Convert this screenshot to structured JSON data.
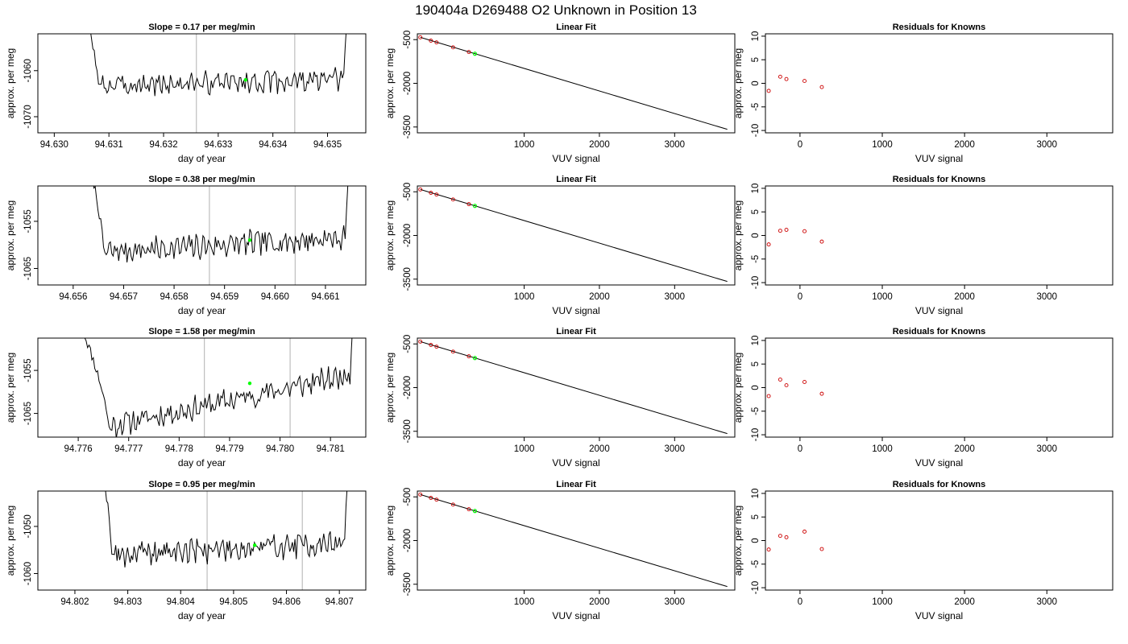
{
  "title": "190404a     D269488   O2 Unknown in Position  13",
  "colors": {
    "trace": "#000000",
    "marker": "#00ff00",
    "known": "#cc0000",
    "vline": "#bebebe"
  },
  "chart_data": [
    {
      "type": "line",
      "row": 0,
      "panel": "timeseries",
      "title": "Slope =  0.17  per meg/min",
      "xlabel": "day of year",
      "ylabel": "approx. per meg",
      "xlim": [
        94.6297,
        94.6357
      ],
      "ylim": [
        -1073.5,
        -1052
      ],
      "xticks": [
        "94.630",
        "94.631",
        "94.632",
        "94.633",
        "94.634",
        "94.635"
      ],
      "xtick_values": [
        94.63,
        94.631,
        94.632,
        94.633,
        94.634,
        94.635
      ],
      "yticks": [
        "-1070",
        "-1060"
      ],
      "ytick_values": [
        -1070,
        -1060
      ],
      "vlines": [
        94.6326,
        94.6344
      ],
      "trace": {
        "x0": 94.6305,
        "x1": 94.6354,
        "rise_x": 94.6308,
        "end_x": 94.6353,
        "level": -1063.2,
        "drift": 1.2,
        "amp": 2.0,
        "spike": 20,
        "seed": 3
      },
      "marker": {
        "x": 94.6335,
        "y": -1062
      }
    },
    {
      "type": "scatter",
      "row": 0,
      "panel": "fit",
      "title": "Linear Fit",
      "xlabel": "VUV signal",
      "ylabel": "approx. per meg",
      "xlim": [
        -420,
        3800
      ],
      "ylim": [
        -3700,
        -300
      ],
      "xticks": [
        "1000",
        "2000",
        "3000"
      ],
      "xtick_values": [
        1000,
        2000,
        3000
      ],
      "yticks": [
        "-500",
        "-2000",
        "-3500"
      ],
      "ytick_values": [
        -500,
        -2000,
        -3500
      ],
      "fit_line": {
        "x": [
          -380,
          3700
        ],
        "y": [
          -420,
          -3580
        ]
      },
      "knowns": {
        "x": [
          -380,
          -240,
          -165,
          55,
          265
        ],
        "y": [
          -420,
          -535,
          -595,
          -765,
          -925
        ]
      },
      "unknown": {
        "x": 345,
        "y": -985
      }
    },
    {
      "type": "scatter",
      "row": 0,
      "panel": "residuals",
      "title": "Residuals for Knowns",
      "xlabel": "VUV signal",
      "ylabel": "approx. per meg",
      "xlim": [
        -420,
        3800
      ],
      "ylim": [
        -10.5,
        10.5
      ],
      "xticks": [
        "0",
        "1000",
        "2000",
        "3000"
      ],
      "xtick_values": [
        0,
        1000,
        2000,
        3000
      ],
      "yticks": [
        "-10",
        "-5",
        "0",
        "5",
        "10"
      ],
      "ytick_values": [
        -10,
        -5,
        0,
        5,
        10
      ],
      "residuals": {
        "x": [
          -380,
          -240,
          -165,
          55,
          265
        ],
        "y": [
          -1.6,
          1.4,
          0.9,
          0.5,
          -0.8
        ]
      }
    },
    {
      "type": "line",
      "row": 1,
      "panel": "timeseries",
      "title": "Slope =  0.38  per meg/min",
      "xlabel": "day of year",
      "ylabel": "approx. per meg",
      "xlim": [
        94.6553,
        94.6618
      ],
      "ylim": [
        -1068.5,
        -1047.5
      ],
      "xticks": [
        "94.656",
        "94.657",
        "94.658",
        "94.659",
        "94.660",
        "94.661"
      ],
      "xtick_values": [
        94.656,
        94.657,
        94.658,
        94.659,
        94.66,
        94.661
      ],
      "yticks": [
        "-1065",
        "-1055"
      ],
      "ytick_values": [
        -1065,
        -1055
      ],
      "vlines": [
        94.6587,
        94.6604
      ],
      "trace": {
        "x0": 94.6563,
        "x1": 94.6615,
        "rise_x": 94.6566,
        "end_x": 94.6614,
        "level": -1061.5,
        "drift": 3.0,
        "amp": 2.2,
        "spike": 20,
        "seed": 7
      },
      "marker": {
        "x": 94.6595,
        "y": -1059
      }
    },
    {
      "type": "scatter",
      "row": 1,
      "panel": "fit",
      "title": "Linear Fit",
      "xlabel": "VUV signal",
      "ylabel": "approx. per meg",
      "xlim": [
        -420,
        3800
      ],
      "ylim": [
        -3700,
        -300
      ],
      "xticks": [
        "1000",
        "2000",
        "3000"
      ],
      "xtick_values": [
        1000,
        2000,
        3000
      ],
      "yticks": [
        "-500",
        "-2000",
        "-3500"
      ],
      "ytick_values": [
        -500,
        -2000,
        -3500
      ],
      "fit_line": {
        "x": [
          -380,
          3700
        ],
        "y": [
          -420,
          -3580
        ]
      },
      "knowns": {
        "x": [
          -380,
          -240,
          -165,
          55,
          265
        ],
        "y": [
          -420,
          -535,
          -595,
          -765,
          -925
        ]
      },
      "unknown": {
        "x": 345,
        "y": -985
      }
    },
    {
      "type": "scatter",
      "row": 1,
      "panel": "residuals",
      "title": "Residuals for Knowns",
      "xlabel": "VUV signal",
      "ylabel": "approx. per meg",
      "xlim": [
        -420,
        3800
      ],
      "ylim": [
        -10.5,
        10.5
      ],
      "xticks": [
        "0",
        "1000",
        "2000",
        "3000"
      ],
      "xtick_values": [
        0,
        1000,
        2000,
        3000
      ],
      "yticks": [
        "-10",
        "-5",
        "0",
        "5",
        "10"
      ],
      "ytick_values": [
        -10,
        -5,
        0,
        5,
        10
      ],
      "residuals": {
        "x": [
          -380,
          -240,
          -165,
          55,
          265
        ],
        "y": [
          -1.9,
          1.0,
          1.2,
          0.9,
          -1.3
        ]
      }
    },
    {
      "type": "line",
      "row": 2,
      "panel": "timeseries",
      "title": "Slope =  1.58  per meg/min",
      "xlabel": "day of year",
      "ylabel": "approx. per meg",
      "xlim": [
        94.7752,
        94.7817
      ],
      "ylim": [
        -1070.5,
        -1047.5
      ],
      "xticks": [
        "94.776",
        "94.777",
        "94.778",
        "94.779",
        "94.780",
        "94.781"
      ],
      "xtick_values": [
        94.776,
        94.777,
        94.778,
        94.779,
        94.78,
        94.781
      ],
      "yticks": [
        "-1065",
        "-1055"
      ],
      "ytick_values": [
        -1065,
        -1055
      ],
      "vlines": [
        94.7785,
        94.7802
      ],
      "trace": {
        "x0": 94.7761,
        "x1": 94.7815,
        "rise_x": 94.7766,
        "end_x": 94.7814,
        "level": -1068,
        "drift": 12,
        "amp": 2.4,
        "spike": 22,
        "seed": 11
      },
      "marker": {
        "x": 94.7794,
        "y": -1058
      }
    },
    {
      "type": "scatter",
      "row": 2,
      "panel": "fit",
      "title": "Linear Fit",
      "xlabel": "VUV signal",
      "ylabel": "approx. per meg",
      "xlim": [
        -420,
        3800
      ],
      "ylim": [
        -3700,
        -300
      ],
      "xticks": [
        "1000",
        "2000",
        "3000"
      ],
      "xtick_values": [
        1000,
        2000,
        3000
      ],
      "yticks": [
        "-500",
        "-2000",
        "-3500"
      ],
      "ytick_values": [
        -500,
        -2000,
        -3500
      ],
      "fit_line": {
        "x": [
          -380,
          3700
        ],
        "y": [
          -420,
          -3580
        ]
      },
      "knowns": {
        "x": [
          -380,
          -240,
          -165,
          55,
          265
        ],
        "y": [
          -420,
          -535,
          -595,
          -765,
          -925
        ]
      },
      "unknown": {
        "x": 345,
        "y": -985
      }
    },
    {
      "type": "scatter",
      "row": 2,
      "panel": "residuals",
      "title": "Residuals for Knowns",
      "xlabel": "VUV signal",
      "ylabel": "approx. per meg",
      "xlim": [
        -420,
        3800
      ],
      "ylim": [
        -10.5,
        10.5
      ],
      "xticks": [
        "0",
        "1000",
        "2000",
        "3000"
      ],
      "xtick_values": [
        0,
        1000,
        2000,
        3000
      ],
      "yticks": [
        "-10",
        "-5",
        "0",
        "5",
        "10"
      ],
      "ytick_values": [
        -10,
        -5,
        0,
        5,
        10
      ],
      "residuals": {
        "x": [
          -380,
          -240,
          -165,
          55,
          265
        ],
        "y": [
          -1.8,
          1.7,
          0.5,
          1.2,
          -1.3
        ]
      }
    },
    {
      "type": "line",
      "row": 3,
      "panel": "timeseries",
      "title": "Slope =  0.95  per meg/min",
      "xlabel": "day of year",
      "ylabel": "approx. per meg",
      "xlim": [
        94.8013,
        94.8075
      ],
      "ylim": [
        -1063.5,
        -1042.5
      ],
      "xticks": [
        "94.802",
        "94.803",
        "94.804",
        "94.805",
        "94.806",
        "94.807"
      ],
      "xtick_values": [
        94.802,
        94.803,
        94.804,
        94.805,
        94.806,
        94.807
      ],
      "yticks": [
        "-1060",
        "-1050"
      ],
      "ytick_values": [
        -1060,
        -1050
      ],
      "vlines": [
        94.8045,
        94.8063
      ],
      "trace": {
        "x0": 94.8025,
        "x1": 94.8072,
        "rise_x": 94.8027,
        "end_x": 94.8071,
        "level": -1056,
        "drift": 2.5,
        "amp": 2.2,
        "spike": 20,
        "seed": 19
      },
      "marker": {
        "x": 94.8054,
        "y": -1054
      }
    },
    {
      "type": "scatter",
      "row": 3,
      "panel": "fit",
      "title": "Linear Fit",
      "xlabel": "VUV signal",
      "ylabel": "approx. per meg",
      "xlim": [
        -420,
        3800
      ],
      "ylim": [
        -3700,
        -300
      ],
      "xticks": [
        "1000",
        "2000",
        "3000"
      ],
      "xtick_values": [
        1000,
        2000,
        3000
      ],
      "yticks": [
        "-500",
        "-2000",
        "-3500"
      ],
      "ytick_values": [
        -500,
        -2000,
        -3500
      ],
      "fit_line": {
        "x": [
          -380,
          3700
        ],
        "y": [
          -420,
          -3580
        ]
      },
      "knowns": {
        "x": [
          -380,
          -240,
          -165,
          55,
          265
        ],
        "y": [
          -420,
          -535,
          -595,
          -765,
          -925
        ]
      },
      "unknown": {
        "x": 345,
        "y": -985
      }
    },
    {
      "type": "scatter",
      "row": 3,
      "panel": "residuals",
      "title": "Residuals for Knowns",
      "xlabel": "VUV signal",
      "ylabel": "approx. per meg",
      "xlim": [
        -420,
        3800
      ],
      "ylim": [
        -10.5,
        10.5
      ],
      "xticks": [
        "0",
        "1000",
        "2000",
        "3000"
      ],
      "xtick_values": [
        0,
        1000,
        2000,
        3000
      ],
      "yticks": [
        "-10",
        "-5",
        "0",
        "5",
        "10"
      ],
      "ytick_values": [
        -10,
        -5,
        0,
        5,
        10
      ],
      "residuals": {
        "x": [
          -380,
          -240,
          -165,
          55,
          265
        ],
        "y": [
          -1.9,
          1.0,
          0.7,
          1.9,
          -1.8
        ]
      }
    }
  ]
}
